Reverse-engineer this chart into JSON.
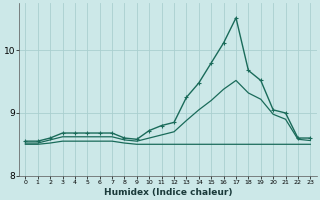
{
  "background_color": "#cce8e8",
  "grid_color": "#aacfcf",
  "line_color": "#1a6b5a",
  "xlabel": "Humidex (Indice chaleur)",
  "x_ticks": [
    0,
    1,
    2,
    3,
    4,
    5,
    6,
    7,
    8,
    9,
    10,
    11,
    12,
    13,
    14,
    15,
    16,
    17,
    18,
    19,
    20,
    21,
    22,
    23
  ],
  "y_ticks": [
    8,
    9,
    10
  ],
  "ylim": [
    8.2,
    10.75
  ],
  "xlim": [
    -0.5,
    23.5
  ],
  "series": {
    "max": {
      "x": [
        0,
        1,
        2,
        3,
        4,
        5,
        6,
        7,
        8,
        9,
        10,
        11,
        12,
        13,
        14,
        15,
        16,
        17,
        18,
        19,
        20,
        21,
        22,
        23
      ],
      "y": [
        8.55,
        8.55,
        8.6,
        8.68,
        8.68,
        8.68,
        8.68,
        8.68,
        8.6,
        8.58,
        8.72,
        8.8,
        8.85,
        9.25,
        9.48,
        9.8,
        10.12,
        10.52,
        9.68,
        9.52,
        9.05,
        9.0,
        8.6,
        8.6
      ]
    },
    "mean": {
      "x": [
        0,
        1,
        2,
        3,
        4,
        5,
        6,
        7,
        8,
        9,
        10,
        11,
        12,
        13,
        14,
        15,
        16,
        17,
        18,
        19,
        20,
        21,
        22,
        23
      ],
      "y": [
        8.52,
        8.52,
        8.57,
        8.62,
        8.62,
        8.62,
        8.62,
        8.62,
        8.57,
        8.55,
        8.6,
        8.65,
        8.7,
        8.88,
        9.05,
        9.2,
        9.38,
        9.52,
        9.32,
        9.22,
        8.98,
        8.9,
        8.58,
        8.56
      ]
    },
    "min": {
      "x": [
        0,
        1,
        2,
        3,
        4,
        5,
        6,
        7,
        8,
        9,
        10,
        11,
        12,
        13,
        14,
        15,
        16,
        17,
        18,
        19,
        20,
        21,
        22,
        23
      ],
      "y": [
        8.5,
        8.5,
        8.52,
        8.55,
        8.55,
        8.55,
        8.55,
        8.55,
        8.52,
        8.5,
        8.5,
        8.5,
        8.5,
        8.5,
        8.5,
        8.5,
        8.5,
        8.5,
        8.5,
        8.5,
        8.5,
        8.5,
        8.5,
        8.5
      ]
    }
  }
}
